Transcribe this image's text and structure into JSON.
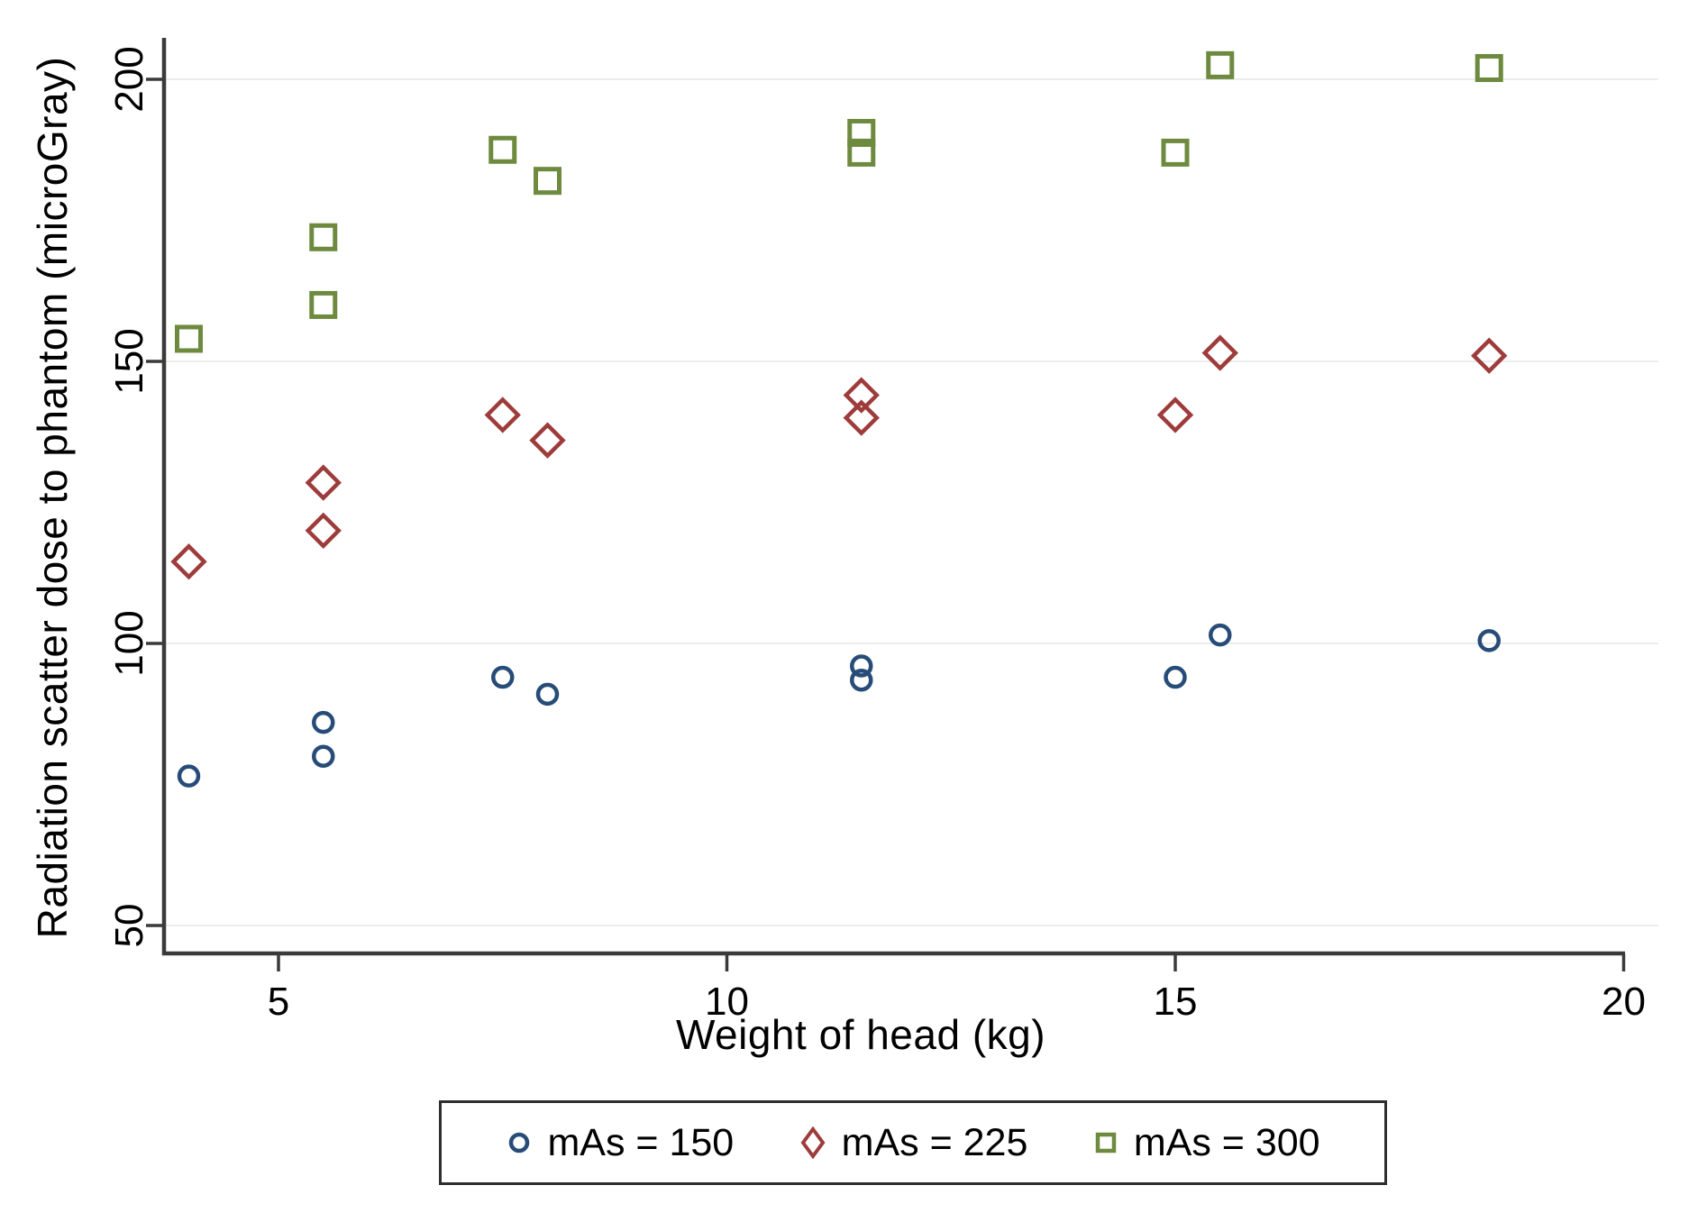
{
  "chart_data": {
    "type": "scatter",
    "title": "",
    "xlabel": "Weight of head (kg)",
    "ylabel": "Radiation scatter dose to phantom (microGray)",
    "xlim": [
      3.7,
      20.4
    ],
    "ylim": [
      45,
      207
    ],
    "x_ticks": [
      5,
      10,
      15,
      20
    ],
    "y_ticks": [
      50,
      100,
      150,
      200
    ],
    "grid": "horizontal-only",
    "gridline_color": "#ececec",
    "axis_color": "#3a3a3a",
    "legend_position": "bottom-boxed",
    "series": [
      {
        "name": "mAs = 150",
        "marker": "circle",
        "color": "#274c78",
        "points": [
          [
            4,
            76.5
          ],
          [
            5.5,
            80
          ],
          [
            5.5,
            86
          ],
          [
            7.5,
            94
          ],
          [
            8,
            91
          ],
          [
            11.5,
            93.5
          ],
          [
            11.5,
            96
          ],
          [
            15,
            94
          ],
          [
            15.5,
            101.5
          ],
          [
            18.5,
            100.5
          ]
        ]
      },
      {
        "name": "mAs = 225",
        "marker": "diamond",
        "color": "#9e3b3b",
        "points": [
          [
            4,
            114.5
          ],
          [
            5.5,
            120
          ],
          [
            5.5,
            128.5
          ],
          [
            7.5,
            140.5
          ],
          [
            8,
            136
          ],
          [
            11.5,
            140
          ],
          [
            11.5,
            144
          ],
          [
            15,
            140.5
          ],
          [
            15.5,
            151.5
          ],
          [
            18.5,
            151
          ]
        ]
      },
      {
        "name": "mAs = 300",
        "marker": "square",
        "color": "#6d8a3f",
        "points": [
          [
            4,
            154
          ],
          [
            5.5,
            160
          ],
          [
            5.5,
            172
          ],
          [
            7.5,
            187.5
          ],
          [
            8,
            182
          ],
          [
            11.5,
            187
          ],
          [
            11.5,
            190.5
          ],
          [
            15,
            187
          ],
          [
            15.5,
            202.5
          ],
          [
            18.5,
            202
          ]
        ]
      }
    ]
  }
}
